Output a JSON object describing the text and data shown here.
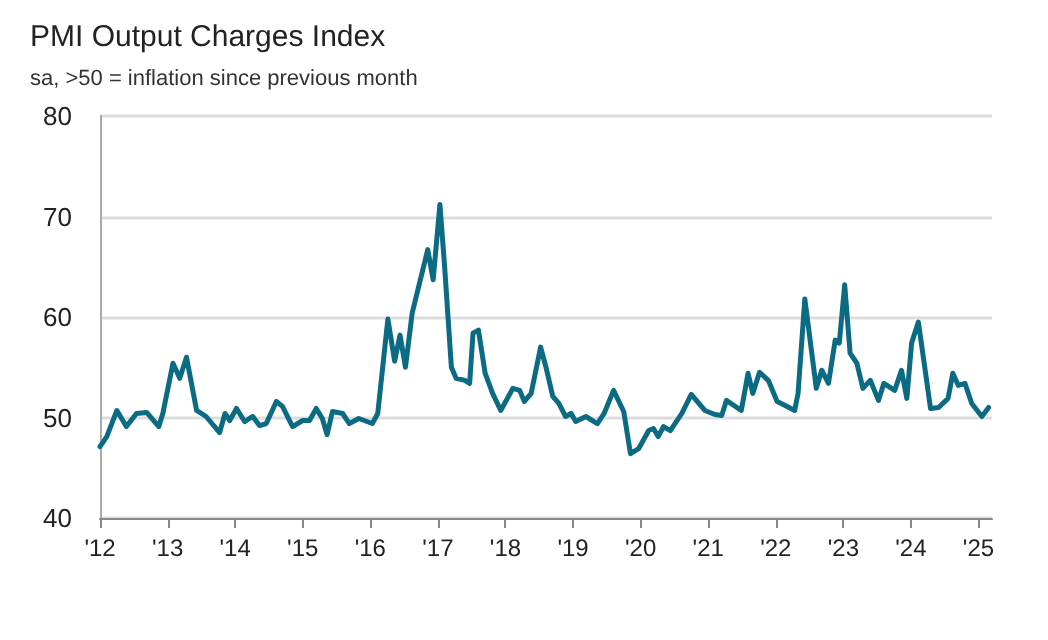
{
  "chart_data": {
    "type": "line",
    "title": "PMI Output Charges Index",
    "subtitle": "sa, >50 = inflation since previous month",
    "x": [
      2012.0,
      2012.1,
      2012.25,
      2012.39,
      2012.54,
      2012.69,
      2012.87,
      2012.93,
      2013.08,
      2013.18,
      2013.28,
      2013.43,
      2013.57,
      2013.77,
      2013.85,
      2013.92,
      2014.02,
      2014.14,
      2014.26,
      2014.36,
      2014.46,
      2014.61,
      2014.7,
      2014.85,
      2015.0,
      2015.1,
      2015.2,
      2015.29,
      2015.36,
      2015.44,
      2015.59,
      2015.69,
      2015.83,
      2016.03,
      2016.11,
      2016.26,
      2016.36,
      2016.44,
      2016.52,
      2016.62,
      2016.74,
      2016.85,
      2016.93,
      2017.03,
      2017.1,
      2017.2,
      2017.27,
      2017.4,
      2017.47,
      2017.52,
      2017.6,
      2017.7,
      2017.81,
      2017.93,
      2018.11,
      2018.21,
      2018.28,
      2018.38,
      2018.52,
      2018.6,
      2018.7,
      2018.79,
      2018.89,
      2018.97,
      2019.04,
      2019.19,
      2019.36,
      2019.46,
      2019.6,
      2019.75,
      2019.85,
      2019.97,
      2020.12,
      2020.19,
      2020.26,
      2020.34,
      2020.44,
      2020.61,
      2020.75,
      2020.95,
      2021.1,
      2021.2,
      2021.27,
      2021.49,
      2021.59,
      2021.66,
      2021.76,
      2021.89,
      2022.02,
      2022.14,
      2022.28,
      2022.33,
      2022.43,
      2022.6,
      2022.68,
      2022.78,
      2022.88,
      2022.94,
      2023.02,
      2023.1,
      2023.2,
      2023.29,
      2023.4,
      2023.52,
      2023.6,
      2023.76,
      2023.86,
      2023.94,
      2024.01,
      2024.11,
      2024.19,
      2024.29,
      2024.41,
      2024.55,
      2024.62,
      2024.7,
      2024.8,
      2024.9,
      2025.05,
      2025.15
    ],
    "series": [
      {
        "color": "#0b6b83",
        "values": [
          47.1,
          48.1,
          50.7,
          49.1,
          50.4,
          50.5,
          49.1,
          50.4,
          55.4,
          53.9,
          56.0,
          50.7,
          50.1,
          48.5,
          50.4,
          49.7,
          50.9,
          49.6,
          50.1,
          49.2,
          49.4,
          51.6,
          51.1,
          49.1,
          49.7,
          49.7,
          50.9,
          49.9,
          48.3,
          50.6,
          50.4,
          49.4,
          49.9,
          49.4,
          50.4,
          59.8,
          55.6,
          58.2,
          55.0,
          60.4,
          63.7,
          66.7,
          63.7,
          71.2,
          65.0,
          55.0,
          53.9,
          53.7,
          53.4,
          58.4,
          58.7,
          54.4,
          52.4,
          50.7,
          52.9,
          52.7,
          51.6,
          52.4,
          57.0,
          55.0,
          52.1,
          51.4,
          50.1,
          50.4,
          49.6,
          50.1,
          49.4,
          50.4,
          52.7,
          50.6,
          46.4,
          46.9,
          48.7,
          48.9,
          48.1,
          49.1,
          48.7,
          50.4,
          52.3,
          50.7,
          50.3,
          50.2,
          51.7,
          50.7,
          54.4,
          52.4,
          54.5,
          53.7,
          51.6,
          51.2,
          50.7,
          52.4,
          61.8,
          52.9,
          54.7,
          53.4,
          57.7,
          57.4,
          63.2,
          56.4,
          55.4,
          52.9,
          53.7,
          51.7,
          53.4,
          52.7,
          54.7,
          51.9,
          57.4,
          59.5,
          55.7,
          50.9,
          51.0,
          51.9,
          54.4,
          53.2,
          53.4,
          51.4,
          50.1,
          51.0
        ]
      }
    ],
    "xlim": [
      2012,
      2025.2
    ],
    "xticks": [
      {
        "value": 2012,
        "label": "'12"
      },
      {
        "value": 2013,
        "label": "'13"
      },
      {
        "value": 2014,
        "label": "'14"
      },
      {
        "value": 2015,
        "label": "'15"
      },
      {
        "value": 2016,
        "label": "'16"
      },
      {
        "value": 2017,
        "label": "'17"
      },
      {
        "value": 2018,
        "label": "'18"
      },
      {
        "value": 2019,
        "label": "'19"
      },
      {
        "value": 2020,
        "label": "'20"
      },
      {
        "value": 2021,
        "label": "'21"
      },
      {
        "value": 2022,
        "label": "'22"
      },
      {
        "value": 2023,
        "label": "'23"
      },
      {
        "value": 2024,
        "label": "'24"
      },
      {
        "value": 2025,
        "label": "'25"
      }
    ],
    "ylim": [
      40,
      80
    ],
    "yticks": [
      40,
      50,
      60,
      70,
      80
    ],
    "grid": "y",
    "marker": "none",
    "line_style": "solid"
  }
}
